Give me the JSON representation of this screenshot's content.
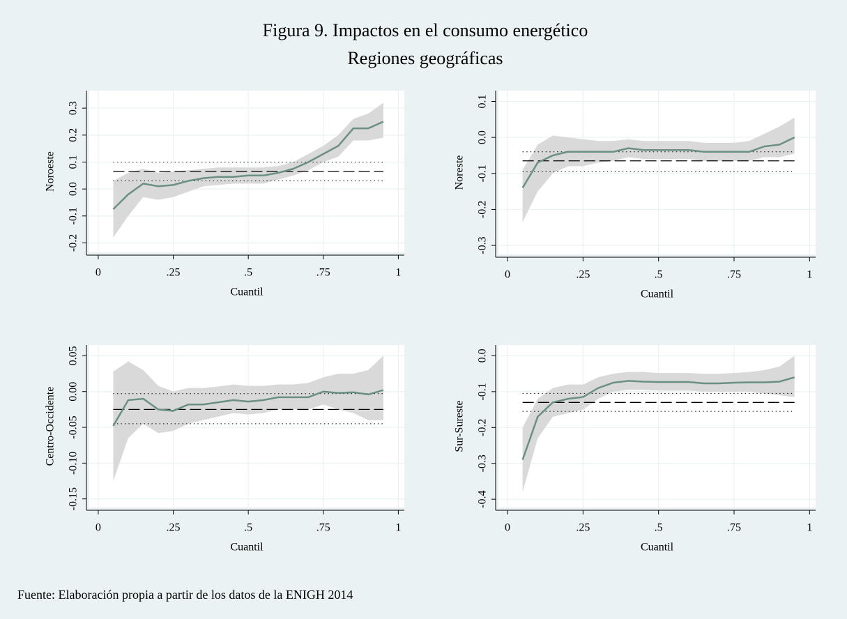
{
  "figure": {
    "title": "Figura 9. Impactos en el consumo energético",
    "subtitle": "Regiones geográficas",
    "note": "Fuente: Elaboración propia a partir de los datos de la ENIGH 2014"
  },
  "chart_data": [
    {
      "type": "line",
      "ylabel": "Noroeste",
      "xlabel": "Cuantil",
      "color": "#6b8f80",
      "band_color": "#d9d9d9",
      "grid": true,
      "xlim": [
        -0.03,
        1.02
      ],
      "xticks": [
        0,
        {
          "value": 0.25,
          "label": ".25"
        },
        {
          "value": 0.5,
          "label": ".5"
        },
        {
          "value": 0.75,
          "label": ".75"
        },
        1
      ],
      "ylim": [
        -0.235,
        0.365
      ],
      "yticks": [
        -0.2,
        -0.1,
        {
          "value": 0,
          "label": "0.0"
        },
        0.1,
        0.2,
        0.3
      ],
      "x": [
        0.05,
        0.1,
        0.15,
        0.2,
        0.25,
        0.3,
        0.35,
        0.4,
        0.45,
        0.5,
        0.55,
        0.6,
        0.65,
        0.7,
        0.75,
        0.8,
        0.85,
        0.9,
        0.95
      ],
      "values": [
        -0.075,
        -0.02,
        0.02,
        0.01,
        0.015,
        0.03,
        0.04,
        0.045,
        0.045,
        0.05,
        0.05,
        0.06,
        0.075,
        0.1,
        0.13,
        0.16,
        0.225,
        0.225,
        0.25
      ],
      "band": {
        "upper": [
          0.03,
          0.06,
          0.075,
          0.06,
          0.065,
          0.07,
          0.075,
          0.08,
          0.08,
          0.08,
          0.08,
          0.085,
          0.1,
          0.13,
          0.16,
          0.2,
          0.26,
          0.28,
          0.32
        ],
        "lower": [
          -0.18,
          -0.1,
          -0.03,
          -0.04,
          -0.03,
          -0.01,
          0.01,
          0.015,
          0.02,
          0.02,
          0.02,
          0.035,
          0.05,
          0.07,
          0.1,
          0.12,
          0.18,
          0.18,
          0.19
        ]
      },
      "ols": {
        "value": 0.065,
        "lower": 0.03,
        "upper": 0.1
      }
    },
    {
      "type": "line",
      "ylabel": "Noreste",
      "xlabel": "Cuantil",
      "color": "#6b8f80",
      "band_color": "#d9d9d9",
      "grid": true,
      "xlim": [
        -0.03,
        1.02
      ],
      "xticks": [
        0,
        {
          "value": 0.25,
          "label": ".25"
        },
        {
          "value": 0.5,
          "label": ".5"
        },
        {
          "value": 0.75,
          "label": ".75"
        },
        1
      ],
      "ylim": [
        -0.325,
        0.13
      ],
      "yticks": [
        -0.3,
        -0.2,
        -0.1,
        {
          "value": 0,
          "label": "0.0"
        },
        0.1
      ],
      "x": [
        0.05,
        0.1,
        0.15,
        0.2,
        0.25,
        0.3,
        0.35,
        0.4,
        0.45,
        0.5,
        0.55,
        0.6,
        0.65,
        0.7,
        0.75,
        0.8,
        0.85,
        0.9,
        0.95
      ],
      "values": [
        -0.14,
        -0.07,
        -0.05,
        -0.04,
        -0.04,
        -0.04,
        -0.04,
        -0.03,
        -0.035,
        -0.035,
        -0.035,
        -0.035,
        -0.04,
        -0.04,
        -0.04,
        -0.04,
        -0.025,
        -0.02,
        0
      ],
      "band": {
        "upper": [
          -0.09,
          -0.02,
          0.005,
          0,
          -0.005,
          -0.01,
          -0.01,
          -0.005,
          -0.01,
          -0.01,
          -0.01,
          -0.01,
          -0.015,
          -0.015,
          -0.015,
          -0.01,
          0.01,
          0.03,
          0.055
        ],
        "lower": [
          -0.235,
          -0.15,
          -0.1,
          -0.08,
          -0.08,
          -0.07,
          -0.065,
          -0.055,
          -0.06,
          -0.06,
          -0.06,
          -0.06,
          -0.065,
          -0.065,
          -0.065,
          -0.065,
          -0.055,
          -0.055,
          -0.045
        ]
      },
      "ols": {
        "value": -0.065,
        "lower": -0.095,
        "upper": -0.04
      }
    },
    {
      "type": "line",
      "ylabel": "Centro-Occidente",
      "xlabel": "Cuantil",
      "color": "#6b8f80",
      "band_color": "#d9d9d9",
      "grid": true,
      "xlim": [
        -0.03,
        1.02
      ],
      "xticks": [
        0,
        {
          "value": 0.25,
          "label": ".25"
        },
        {
          "value": 0.5,
          "label": ".5"
        },
        {
          "value": 0.75,
          "label": ".75"
        },
        1
      ],
      "ylim": [
        -0.162,
        0.065
      ],
      "yticks": [
        -0.15,
        {
          "value": -0.1,
          "label": "-0.10"
        },
        -0.05,
        {
          "value": 0,
          "label": "0.00"
        },
        0.05
      ],
      "x": [
        0.05,
        0.1,
        0.15,
        0.2,
        0.25,
        0.3,
        0.35,
        0.4,
        0.45,
        0.5,
        0.55,
        0.6,
        0.65,
        0.7,
        0.75,
        0.8,
        0.85,
        0.9,
        0.95
      ],
      "values": [
        -0.048,
        -0.012,
        -0.01,
        -0.025,
        -0.027,
        -0.018,
        -0.018,
        -0.015,
        -0.012,
        -0.014,
        -0.012,
        -0.008,
        -0.008,
        -0.008,
        0,
        -0.002,
        -0.001,
        -0.004,
        0.002
      ],
      "band": {
        "upper": [
          0.028,
          0.042,
          0.03,
          0.008,
          0,
          0.005,
          0.005,
          0.007,
          0.01,
          0.008,
          0.008,
          0.01,
          0.01,
          0.012,
          0.02,
          0.025,
          0.025,
          0.03,
          0.05
        ],
        "lower": [
          -0.125,
          -0.065,
          -0.045,
          -0.058,
          -0.055,
          -0.045,
          -0.04,
          -0.035,
          -0.03,
          -0.032,
          -0.03,
          -0.025,
          -0.025,
          -0.025,
          -0.018,
          -0.025,
          -0.03,
          -0.04,
          -0.04
        ]
      },
      "ols": {
        "value": -0.025,
        "lower": -0.045,
        "upper": -0.003
      }
    },
    {
      "type": "line",
      "ylabel": "Sur-Sureste",
      "xlabel": "Cuantil",
      "color": "#6b8f80",
      "band_color": "#d9d9d9",
      "grid": true,
      "xlim": [
        -0.03,
        1.02
      ],
      "xticks": [
        0,
        {
          "value": 0.25,
          "label": ".25"
        },
        {
          "value": 0.5,
          "label": ".5"
        },
        {
          "value": 0.75,
          "label": ".75"
        },
        1
      ],
      "ylim": [
        -0.423,
        0.03
      ],
      "yticks": [
        -0.4,
        -0.3,
        -0.2,
        -0.1,
        {
          "value": 0,
          "label": "0.0"
        }
      ],
      "x": [
        0.05,
        0.1,
        0.15,
        0.2,
        0.25,
        0.3,
        0.35,
        0.4,
        0.45,
        0.5,
        0.55,
        0.6,
        0.65,
        0.7,
        0.75,
        0.8,
        0.85,
        0.9,
        0.95
      ],
      "values": [
        -0.29,
        -0.17,
        -0.13,
        -0.12,
        -0.115,
        -0.09,
        -0.075,
        -0.07,
        -0.072,
        -0.073,
        -0.073,
        -0.073,
        -0.077,
        -0.077,
        -0.075,
        -0.074,
        -0.074,
        -0.072,
        -0.06
      ],
      "band": {
        "upper": [
          -0.2,
          -0.12,
          -0.09,
          -0.08,
          -0.08,
          -0.06,
          -0.05,
          -0.045,
          -0.045,
          -0.048,
          -0.048,
          -0.048,
          -0.05,
          -0.05,
          -0.048,
          -0.045,
          -0.04,
          -0.03,
          0
        ],
        "lower": [
          -0.38,
          -0.23,
          -0.17,
          -0.16,
          -0.15,
          -0.12,
          -0.1,
          -0.095,
          -0.095,
          -0.097,
          -0.097,
          -0.097,
          -0.1,
          -0.1,
          -0.1,
          -0.1,
          -0.105,
          -0.11,
          -0.115
        ]
      },
      "ols": {
        "value": -0.13,
        "lower": -0.155,
        "upper": -0.105
      }
    }
  ]
}
